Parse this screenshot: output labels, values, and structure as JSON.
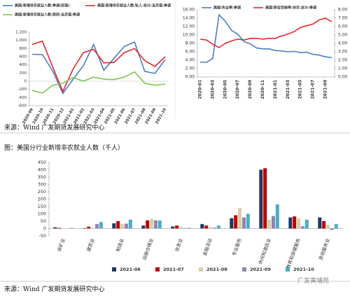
{
  "chart_data": [
    {
      "type": "line",
      "categories": [
        "2020-09",
        "2020-10",
        "2020-11",
        "2020-12",
        "2021-01",
        "2021-02",
        "2021-03",
        "2021-04",
        "2021-05",
        "2021-06",
        "2021-07",
        "2021-08",
        "2021-09",
        "2021-10"
      ],
      "ylim": [
        -600,
        1200
      ],
      "yticks": [
        -600,
        -400,
        -200,
        0,
        200,
        400,
        600,
        800,
        {
          "value": 1000,
          "label": "1,000"
        },
        {
          "value": 1200,
          "label": "1,200"
        }
      ],
      "series": [
        {
          "name": "美国:新增非农就业人数:季调(初值)",
          "color": "#4a7fc1",
          "values": [
            660,
            650,
            250,
            -300,
            50,
            380,
            900,
            270,
            560,
            850,
            960,
            240,
            190,
            530
          ]
        },
        {
          "name": "美国:新增非农就业人数:私人:总计:当月值:季调",
          "color": "#e8262a",
          "values": [
            900,
            980,
            350,
            -250,
            300,
            700,
            780,
            450,
            460,
            700,
            800,
            500,
            360,
            600
          ]
        },
        {
          "name": "美国:新增非农就业人数:政府:当月值:季调",
          "color": "#7dc653",
          "values": [
            -230,
            -290,
            -100,
            -50,
            90,
            0,
            100,
            50,
            40,
            100,
            230,
            -50,
            -100,
            -70
          ]
        }
      ]
    },
    {
      "type": "line",
      "categories": [
        "2020-01",
        null,
        "2020-03",
        null,
        "2020-05",
        null,
        "2020-07",
        null,
        "2020-09",
        null,
        "2020-11",
        null,
        "2021-01",
        null,
        "2021-03",
        null,
        "2021-05",
        null,
        "2021-07",
        null,
        "2021-09",
        null
      ],
      "ylim": [
        0,
        16
      ],
      "yticks": [
        {
          "value": 0,
          "label": "0.00"
        },
        {
          "value": 2,
          "label": "2.00"
        },
        {
          "value": 4,
          "label": "4.00"
        },
        {
          "value": 6,
          "label": "6.00"
        },
        {
          "value": 8,
          "label": "8.00"
        },
        {
          "value": 10,
          "label": "10.00"
        },
        {
          "value": 12,
          "label": "12.00"
        },
        {
          "value": 14,
          "label": "14.00"
        },
        {
          "value": 16,
          "label": "16.00"
        }
      ],
      "y2lim": [
        0,
        8
      ],
      "y2ticks": [
        {
          "value": 0,
          "label": "0.00"
        },
        {
          "value": 1,
          "label": "1.00"
        },
        {
          "value": 2,
          "label": "2.00"
        },
        {
          "value": 3,
          "label": "3.00"
        },
        {
          "value": 4,
          "label": "4.00"
        },
        {
          "value": 5,
          "label": "5.00"
        },
        {
          "value": 6,
          "label": "6.00"
        },
        {
          "value": 7,
          "label": "7.00"
        },
        {
          "value": 8,
          "label": "8.00"
        }
      ],
      "series": [
        {
          "name": "美国:失业率:季调",
          "color": "#4a7fc1",
          "values": [
            3.5,
            3.5,
            4.4,
            14.8,
            13.3,
            11.1,
            10.2,
            8.4,
            7.9,
            6.9,
            6.7,
            6.7,
            6.3,
            6.2,
            6.0,
            6.1,
            5.8,
            5.9,
            5.4,
            5.2,
            4.8,
            4.6
          ]
        },
        {
          "name": "美国:职位空缺率:非农:总计:季调",
          "color": "#e8262a",
          "axis": "y2",
          "values": [
            4.5,
            4.4,
            3.9,
            3.5,
            4.0,
            4.3,
            4.5,
            4.4,
            4.6,
            4.6,
            4.5,
            4.6,
            4.6,
            4.9,
            5.1,
            5.4,
            5.9,
            6.1,
            6.3,
            6.8,
            7.0,
            6.6
          ]
        }
      ]
    },
    {
      "type": "bar",
      "categories": [
        "采矿业",
        "建筑业",
        "制造业",
        "运输仓储业",
        "信息业",
        "金融活动",
        "专业服务",
        "休闲和酒店业",
        "教育和保健服务",
        "其他服务业"
      ],
      "ylim": [
        -50,
        450
      ],
      "yticks": [
        -50,
        0,
        50,
        100,
        150,
        200,
        250,
        300,
        350,
        400,
        450
      ],
      "series": [
        {
          "name": "2021-06",
          "color": "#1f3864",
          "values": [
            8,
            3,
            35,
            20,
            14,
            30,
            70,
            400,
            75,
            75
          ]
        },
        {
          "name": "2021-07",
          "color": "#c00000",
          "values": [
            4,
            12,
            50,
            55,
            20,
            20,
            90,
            410,
            82,
            50
          ]
        },
        {
          "name": "2021-08",
          "color": "#d9cfa8",
          "values": [
            2,
            5,
            30,
            65,
            10,
            10,
            140,
            60,
            70,
            25
          ]
        },
        {
          "name": "2021-09",
          "color": "#8e86ae",
          "values": [
            0,
            30,
            33,
            55,
            3,
            5,
            75,
            85,
            15,
            -10
          ]
        },
        {
          "name": "2021-10",
          "color": "#4bacc6",
          "values": [
            4,
            44,
            60,
            54,
            4,
            20,
            100,
            164,
            60,
            30
          ]
        }
      ]
    }
  ],
  "source_top": "来源：Wind  广发期货发展研究中心",
  "figure_caption": "图：美国分行业新增非农就业人数（千人）",
  "source_bottom": "来源：Wind  广发期货发展研究中心",
  "watermark": "广发黄埔苑"
}
